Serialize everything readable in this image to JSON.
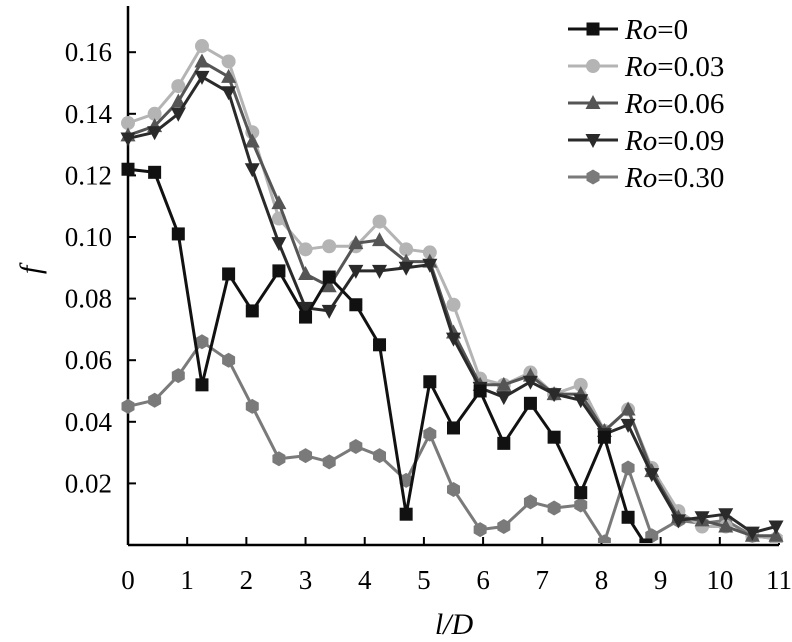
{
  "chart_data": {
    "type": "line",
    "xlabel": "l/D",
    "ylabel": "f",
    "xlim": [
      0,
      11
    ],
    "ylim": [
      0,
      0.175
    ],
    "xticks": [
      0,
      1,
      2,
      3,
      4,
      5,
      6,
      7,
      8,
      9,
      10,
      11
    ],
    "xtick_labels": [
      "0",
      "1",
      "2",
      "3",
      "4",
      "5",
      "6",
      "7",
      "8",
      "9",
      "10",
      "11"
    ],
    "yticks": [
      0.02,
      0.04,
      0.06,
      0.08,
      0.1,
      0.12,
      0.14,
      0.16
    ],
    "ytick_labels": [
      "0.02",
      "0.04",
      "0.06",
      "0.08",
      "0.10",
      "0.12",
      "0.14",
      "0.16"
    ],
    "grid": false,
    "legend_position": "top-right",
    "series": [
      {
        "name": "Ro=0",
        "name_italic": "Ro",
        "name_rest": "=0",
        "color": "#111111",
        "marker": "square",
        "x": [
          0,
          0.45,
          0.85,
          1.25,
          1.7,
          2.1,
          2.55,
          3.0,
          3.4,
          3.85,
          4.25,
          4.7,
          5.1,
          5.5,
          5.95,
          6.35,
          6.8,
          7.2,
          7.65,
          8.05,
          8.45,
          8.75
        ],
        "y": [
          0.122,
          0.121,
          0.101,
          0.052,
          0.088,
          0.076,
          0.089,
          0.074,
          0.087,
          0.078,
          0.065,
          0.01,
          0.053,
          0.038,
          0.05,
          0.033,
          0.046,
          0.035,
          0.017,
          0.035,
          0.009,
          0.0
        ]
      },
      {
        "name": "Ro=0.03",
        "name_italic": "Ro",
        "name_rest": "=0.03",
        "color": "#b4b4b4",
        "marker": "circle",
        "x": [
          0,
          0.45,
          0.85,
          1.25,
          1.7,
          2.1,
          2.55,
          3.0,
          3.4,
          3.85,
          4.25,
          4.7,
          5.1,
          5.5,
          5.95,
          6.35,
          6.8,
          7.2,
          7.65,
          8.05,
          8.45,
          8.85,
          9.3,
          9.7,
          10.1,
          10.55,
          10.95
        ],
        "y": [
          0.137,
          0.14,
          0.149,
          0.162,
          0.157,
          0.134,
          0.106,
          0.096,
          0.097,
          0.097,
          0.105,
          0.096,
          0.095,
          0.078,
          0.054,
          0.052,
          0.056,
          0.049,
          0.052,
          0.037,
          0.044,
          0.025,
          0.011,
          0.006,
          0.006,
          0.003,
          0.002
        ]
      },
      {
        "name": "Ro=0.06",
        "name_italic": "Ro",
        "name_rest": "=0.06",
        "color": "#555555",
        "marker": "triangle-up",
        "x": [
          0,
          0.45,
          0.85,
          1.25,
          1.7,
          2.1,
          2.55,
          3.0,
          3.4,
          3.85,
          4.25,
          4.7,
          5.1,
          5.5,
          5.95,
          6.35,
          6.8,
          7.2,
          7.65,
          8.05,
          8.45,
          8.85,
          9.3,
          9.7,
          10.1,
          10.55,
          10.95
        ],
        "y": [
          0.133,
          0.136,
          0.144,
          0.157,
          0.152,
          0.131,
          0.111,
          0.088,
          0.084,
          0.098,
          0.099,
          0.092,
          0.092,
          0.069,
          0.052,
          0.052,
          0.055,
          0.049,
          0.049,
          0.037,
          0.044,
          0.024,
          0.009,
          0.008,
          0.006,
          0.003,
          0.003
        ]
      },
      {
        "name": "Ro=0.09",
        "name_italic": "Ro",
        "name_rest": "=0.09",
        "color": "#2a2a2a",
        "marker": "triangle-down",
        "x": [
          0,
          0.45,
          0.85,
          1.25,
          1.7,
          2.1,
          2.55,
          3.0,
          3.4,
          3.85,
          4.25,
          4.7,
          5.1,
          5.5,
          5.95,
          6.35,
          6.8,
          7.2,
          7.65,
          8.05,
          8.45,
          8.85,
          9.3,
          9.7,
          10.1,
          10.55,
          10.95
        ],
        "y": [
          0.132,
          0.134,
          0.14,
          0.152,
          0.147,
          0.122,
          0.098,
          0.077,
          0.076,
          0.089,
          0.089,
          0.09,
          0.091,
          0.067,
          0.051,
          0.048,
          0.053,
          0.049,
          0.047,
          0.036,
          0.039,
          0.023,
          0.008,
          0.009,
          0.01,
          0.004,
          0.006
        ]
      },
      {
        "name": "Ro=0.30",
        "name_italic": "Ro",
        "name_rest": "=0.30",
        "color": "#7a7a7a",
        "marker": "hexagon",
        "x": [
          0,
          0.45,
          0.85,
          1.25,
          1.7,
          2.1,
          2.55,
          3.0,
          3.4,
          3.85,
          4.25,
          4.7,
          5.1,
          5.5,
          5.95,
          6.35,
          6.8,
          7.2,
          7.65,
          8.05,
          8.45,
          8.85,
          9.3,
          9.7,
          10.1,
          10.55,
          10.95
        ],
        "y": [
          0.045,
          0.047,
          0.055,
          0.066,
          0.06,
          0.045,
          0.028,
          0.029,
          0.027,
          0.032,
          0.029,
          0.021,
          0.036,
          0.018,
          0.005,
          0.006,
          0.014,
          0.012,
          0.013,
          0.001,
          0.025,
          0.003,
          0.008,
          0.007,
          0.008,
          0.003,
          0.002
        ]
      }
    ]
  }
}
